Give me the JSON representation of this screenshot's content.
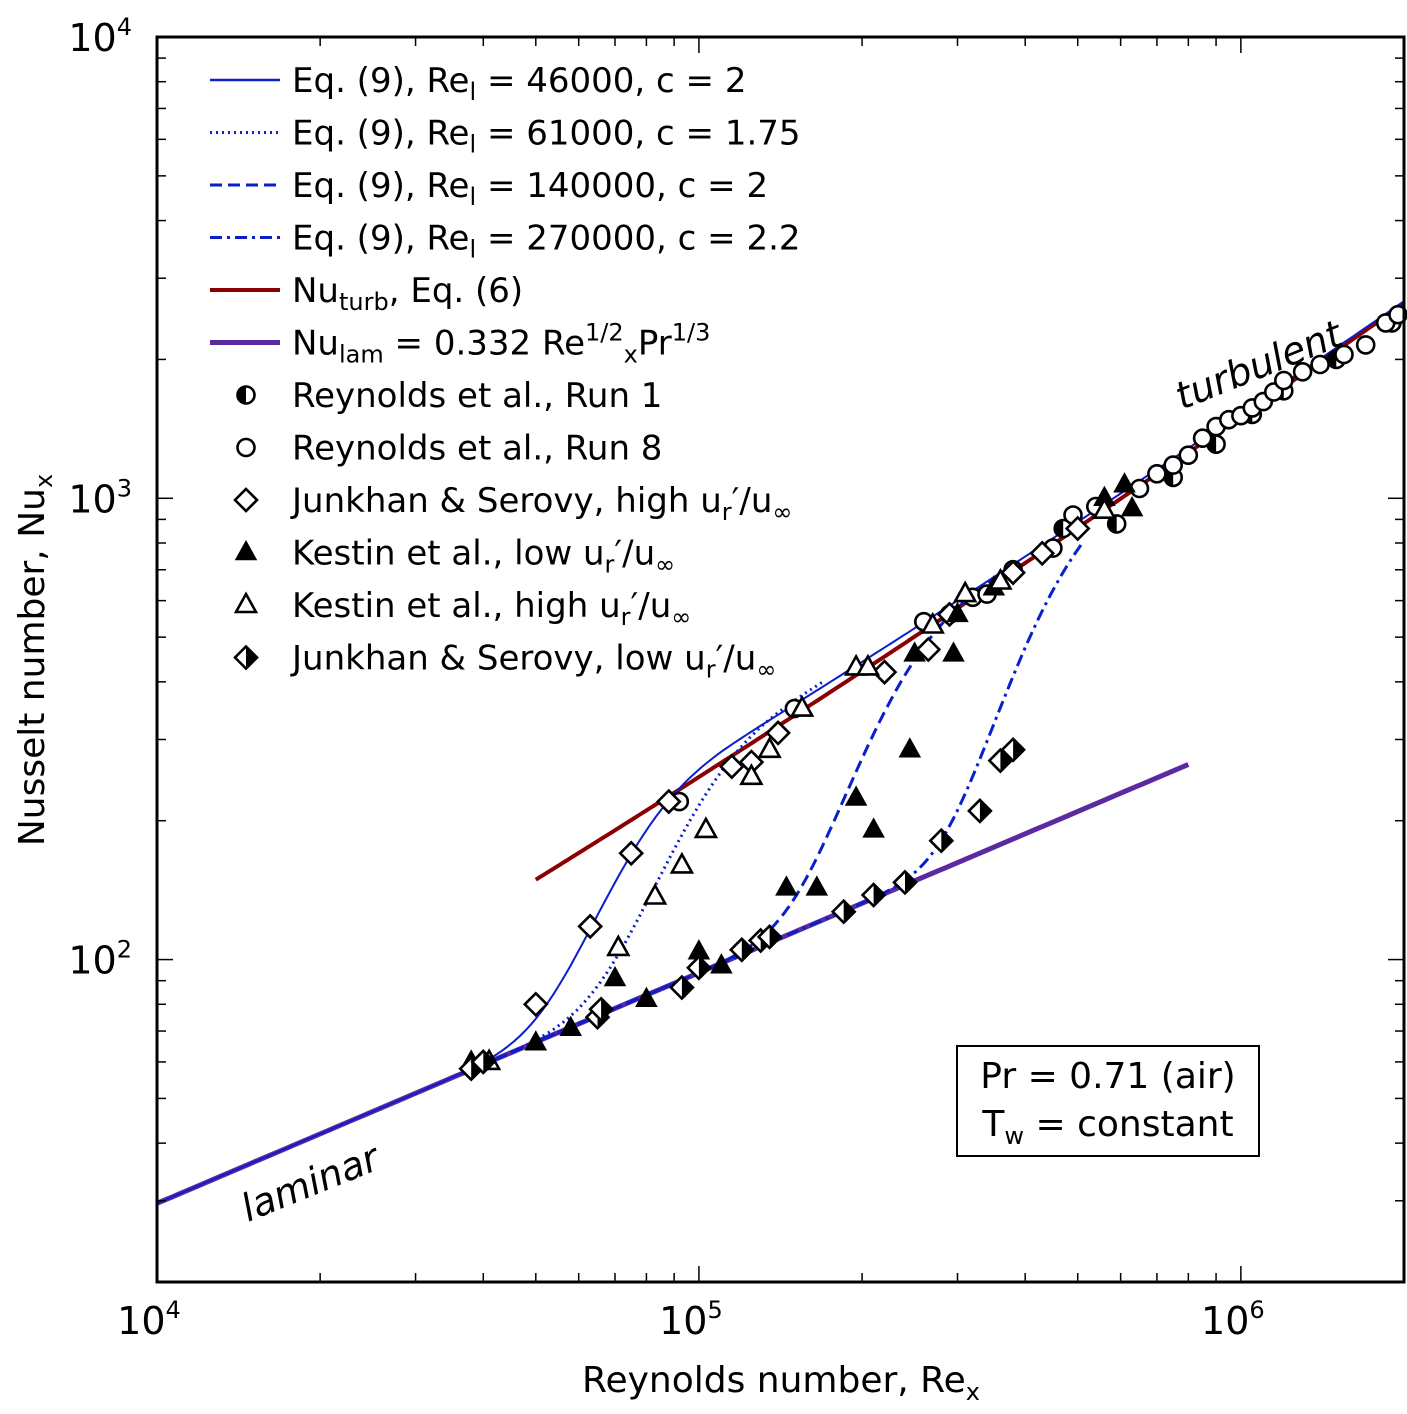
{
  "chart_data": {
    "type": "scatter",
    "x_scale": "log",
    "y_scale": "log",
    "xlim": [
      10000,
      2000000
    ],
    "ylim": [
      20,
      10000
    ],
    "xlabel": "Reynolds number, Re",
    "xlabel_sub": "x",
    "ylabel": "Nusselt number, Nu",
    "ylabel_sub": "x",
    "x_major_ticks": [
      {
        "value": 10000,
        "base": "10",
        "exp": "4"
      },
      {
        "value": 100000,
        "base": "10",
        "exp": "5"
      },
      {
        "value": 1000000,
        "base": "10",
        "exp": "6"
      }
    ],
    "y_major_ticks": [
      {
        "value": 100,
        "base": "10",
        "exp": "2"
      },
      {
        "value": 1000,
        "base": "10",
        "exp": "3"
      },
      {
        "value": 10000,
        "base": "10",
        "exp": "4"
      }
    ],
    "annotations": {
      "laminar": "laminar",
      "turbulent": "turbulent",
      "box_line1": "Pr = 0.71 (air)",
      "box_line2_a": "T",
      "box_line2_sub": "w",
      "box_line2_b": " = constant"
    },
    "colors": {
      "blue": "#0a1ecc",
      "red": "#8b0000",
      "purple": "#5b2aa0"
    },
    "legend": [
      {
        "a": "Eq. (9), Re",
        "sub": "l",
        "b": " = 46000, c = 2",
        "marker": "solid"
      },
      {
        "a": "Eq. (9), Re",
        "sub": "l",
        "b": " = 61000, c = 1.75",
        "marker": "dotted"
      },
      {
        "a": "Eq. (9), Re",
        "sub": "l",
        "b": " = 140000, c = 2",
        "marker": "dashed"
      },
      {
        "a": "Eq. (9), Re",
        "sub": "l",
        "b": " = 270000, c = 2.2",
        "marker": "dashdot"
      },
      {
        "a": "Nu",
        "sub": "turb",
        "b": ", Eq. (6)",
        "marker": "turb"
      },
      {
        "a": "Nu",
        "sub": "lam",
        "b": " = 0.332 Re",
        "sub2": "x",
        "sup2": "1/2",
        "c": "Pr",
        "sup3": "1/3",
        "marker": "lam"
      },
      {
        "a": "Reynolds et al., Run 1",
        "marker": "halfcircle"
      },
      {
        "a": "Reynolds et al., Run 8",
        "marker": "circle"
      },
      {
        "a": "Junkhan & Serovy, high u",
        "sub": "r",
        "prime": "′",
        "b": "/u",
        "sub2": "∞",
        "marker": "diamond"
      },
      {
        "a": "Kestin et al., low u",
        "sub": "r",
        "prime": "′",
        "b": "/u",
        "sub2": "∞",
        "marker": "trifill"
      },
      {
        "a": "Kestin et al., high u",
        "sub": "r",
        "prime": "′",
        "b": "/u",
        "sub2": "∞",
        "marker": "triopen"
      },
      {
        "a": "Junkhan & Serovy, low u",
        "sub": "r",
        "prime": "′",
        "b": "/u",
        "sub2": "∞",
        "marker": "halfdiamond"
      }
    ],
    "series": [
      {
        "name": "Nu_lam = 0.332 Re^1/2 Pr^1/3",
        "kind": "lam",
        "x": [
          10000,
          800000
        ]
      },
      {
        "name": "Nu_turb, Eq. (6)",
        "kind": "turb",
        "x": [
          50000,
          2000000
        ]
      },
      {
        "name": "Eq. (9), Re_l = 46000, c = 2",
        "kind": "eq9",
        "Rel": 46000,
        "c": 2,
        "style": "solid",
        "x": [
          10000,
          2000000
        ]
      },
      {
        "name": "Eq. (9), Re_l = 61000, c = 1.75",
        "kind": "eq9",
        "Rel": 61000,
        "c": 1.75,
        "style": "dotted",
        "x": [
          40000,
          160000
        ]
      },
      {
        "name": "Eq. (9), Re_l = 140000, c = 2",
        "kind": "eq9",
        "Rel": 140000,
        "c": 2,
        "style": "dashed",
        "x": [
          40000,
          400000
        ]
      },
      {
        "name": "Eq. (9), Re_l = 270000, c = 2.2",
        "kind": "eq9",
        "Rel": 270000,
        "c": 2.2,
        "style": "dashdot",
        "x": [
          40000,
          500000
        ]
      },
      {
        "name": "Reynolds et al., Run 1",
        "kind": "points",
        "marker": "halfcircle",
        "points": [
          [
            470000,
            860
          ],
          [
            590000,
            880
          ],
          [
            750000,
            1110
          ],
          [
            900000,
            1310
          ],
          [
            1050000,
            1520
          ],
          [
            1200000,
            1710
          ],
          [
            1500000,
            2000
          ],
          [
            1900000,
            2400
          ]
        ]
      },
      {
        "name": "Reynolds et al., Run 8",
        "kind": "points",
        "marker": "circle",
        "points": [
          [
            92000,
            220
          ],
          [
            150000,
            350
          ],
          [
            260000,
            540
          ],
          [
            290000,
            560
          ],
          [
            320000,
            610
          ],
          [
            340000,
            620
          ],
          [
            380000,
            700
          ],
          [
            450000,
            780
          ],
          [
            490000,
            920
          ],
          [
            540000,
            960
          ],
          [
            650000,
            1050
          ],
          [
            700000,
            1130
          ],
          [
            750000,
            1180
          ],
          [
            800000,
            1240
          ],
          [
            850000,
            1350
          ],
          [
            900000,
            1430
          ],
          [
            950000,
            1480
          ],
          [
            1000000,
            1510
          ],
          [
            1050000,
            1570
          ],
          [
            1100000,
            1620
          ],
          [
            1150000,
            1700
          ],
          [
            1200000,
            1800
          ],
          [
            1300000,
            1880
          ],
          [
            1400000,
            1950
          ],
          [
            1550000,
            2050
          ],
          [
            1700000,
            2150
          ],
          [
            1850000,
            2400
          ],
          [
            1950000,
            2500
          ]
        ]
      },
      {
        "name": "Junkhan & Serovy, high u'r/u∞",
        "kind": "points",
        "marker": "diamond",
        "points": [
          [
            50000,
            80
          ],
          [
            63000,
            118
          ],
          [
            75000,
            170
          ],
          [
            88000,
            220
          ],
          [
            115000,
            262
          ],
          [
            125000,
            268
          ],
          [
            140000,
            310
          ],
          [
            220000,
            420
          ],
          [
            265000,
            470
          ],
          [
            290000,
            560
          ],
          [
            380000,
            690
          ],
          [
            430000,
            760
          ],
          [
            500000,
            860
          ]
        ]
      },
      {
        "name": "Kestin et al., low u'r/u∞",
        "kind": "points",
        "marker": "trifill",
        "points": [
          [
            38000,
            60
          ],
          [
            50000,
            66
          ],
          [
            58000,
            71
          ],
          [
            70000,
            91
          ],
          [
            80000,
            82
          ],
          [
            100000,
            104
          ],
          [
            110000,
            97
          ],
          [
            145000,
            143
          ],
          [
            165000,
            143
          ],
          [
            195000,
            224
          ],
          [
            210000,
            191
          ],
          [
            245000,
            285
          ],
          [
            250000,
            460
          ],
          [
            295000,
            460
          ],
          [
            300000,
            560
          ],
          [
            350000,
            640
          ],
          [
            560000,
            1000
          ],
          [
            610000,
            1070
          ],
          [
            630000,
            950
          ]
        ]
      },
      {
        "name": "Kestin et al., high u'r/u∞",
        "kind": "points",
        "marker": "triopen",
        "points": [
          [
            41000,
            60
          ],
          [
            71000,
            106
          ],
          [
            83000,
            137
          ],
          [
            93000,
            160
          ],
          [
            103000,
            191
          ],
          [
            125000,
            249
          ],
          [
            135000,
            285
          ],
          [
            155000,
            350
          ],
          [
            195000,
            430
          ],
          [
            205000,
            430
          ],
          [
            270000,
            530
          ],
          [
            310000,
            620
          ],
          [
            360000,
            660
          ],
          [
            560000,
            940
          ]
        ]
      },
      {
        "name": "Junkhan & Serovy, low u'r/u∞",
        "kind": "points",
        "marker": "halfdiamond",
        "points": [
          [
            38000,
            58
          ],
          [
            40000,
            60
          ],
          [
            65000,
            75
          ],
          [
            66000,
            78
          ],
          [
            93000,
            87
          ],
          [
            100000,
            96
          ],
          [
            120000,
            105
          ],
          [
            130000,
            110
          ],
          [
            135000,
            112
          ],
          [
            185000,
            127
          ],
          [
            210000,
            138
          ],
          [
            240000,
            147
          ],
          [
            280000,
            181
          ],
          [
            330000,
            210
          ],
          [
            360000,
            270
          ],
          [
            380000,
            285
          ]
        ]
      }
    ]
  }
}
